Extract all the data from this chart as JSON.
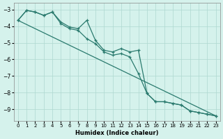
{
  "xlabel": "Humidex (Indice chaleur)",
  "ylabel": "",
  "bg_color": "#d5f2ec",
  "grid_color": "#aed8d0",
  "line_color": "#2a7a6e",
  "xlim": [
    -0.5,
    23.5
  ],
  "ylim": [
    -9.7,
    -2.6
  ],
  "xticks": [
    0,
    1,
    2,
    3,
    4,
    5,
    6,
    7,
    8,
    9,
    10,
    11,
    12,
    13,
    14,
    15,
    16,
    17,
    18,
    19,
    20,
    21,
    22,
    23
  ],
  "yticks": [
    -3,
    -4,
    -5,
    -6,
    -7,
    -8,
    -9
  ],
  "line1_x": [
    0,
    1,
    2,
    3,
    4,
    5,
    6,
    7,
    8,
    9,
    10,
    11,
    12,
    13,
    14,
    15,
    16,
    17,
    18,
    19,
    20,
    21,
    22,
    23
  ],
  "line1_y": [
    -3.65,
    -3.05,
    -3.15,
    -3.35,
    -3.15,
    -3.75,
    -4.05,
    -4.15,
    -3.65,
    -4.85,
    -5.45,
    -5.55,
    -5.35,
    -5.55,
    -5.45,
    -8.05,
    -8.55,
    -8.55,
    -8.65,
    -8.75,
    -9.1,
    -9.2,
    -9.3,
    -9.4
  ],
  "line2_x": [
    0,
    1,
    2,
    3,
    4,
    5,
    6,
    7,
    8,
    9,
    10,
    11,
    12,
    13,
    14,
    15,
    16,
    17,
    18,
    19,
    20,
    21,
    22,
    23
  ],
  "line2_y": [
    -3.65,
    -3.05,
    -3.15,
    -3.35,
    -3.15,
    -3.85,
    -4.15,
    -4.25,
    -4.75,
    -5.05,
    -5.55,
    -5.75,
    -5.65,
    -5.85,
    -6.85,
    -8.05,
    -8.55,
    -8.55,
    -8.65,
    -8.75,
    -9.1,
    -9.2,
    -9.3,
    -9.4
  ],
  "line3_x": [
    0,
    23
  ],
  "line3_y": [
    -3.65,
    -9.4
  ]
}
